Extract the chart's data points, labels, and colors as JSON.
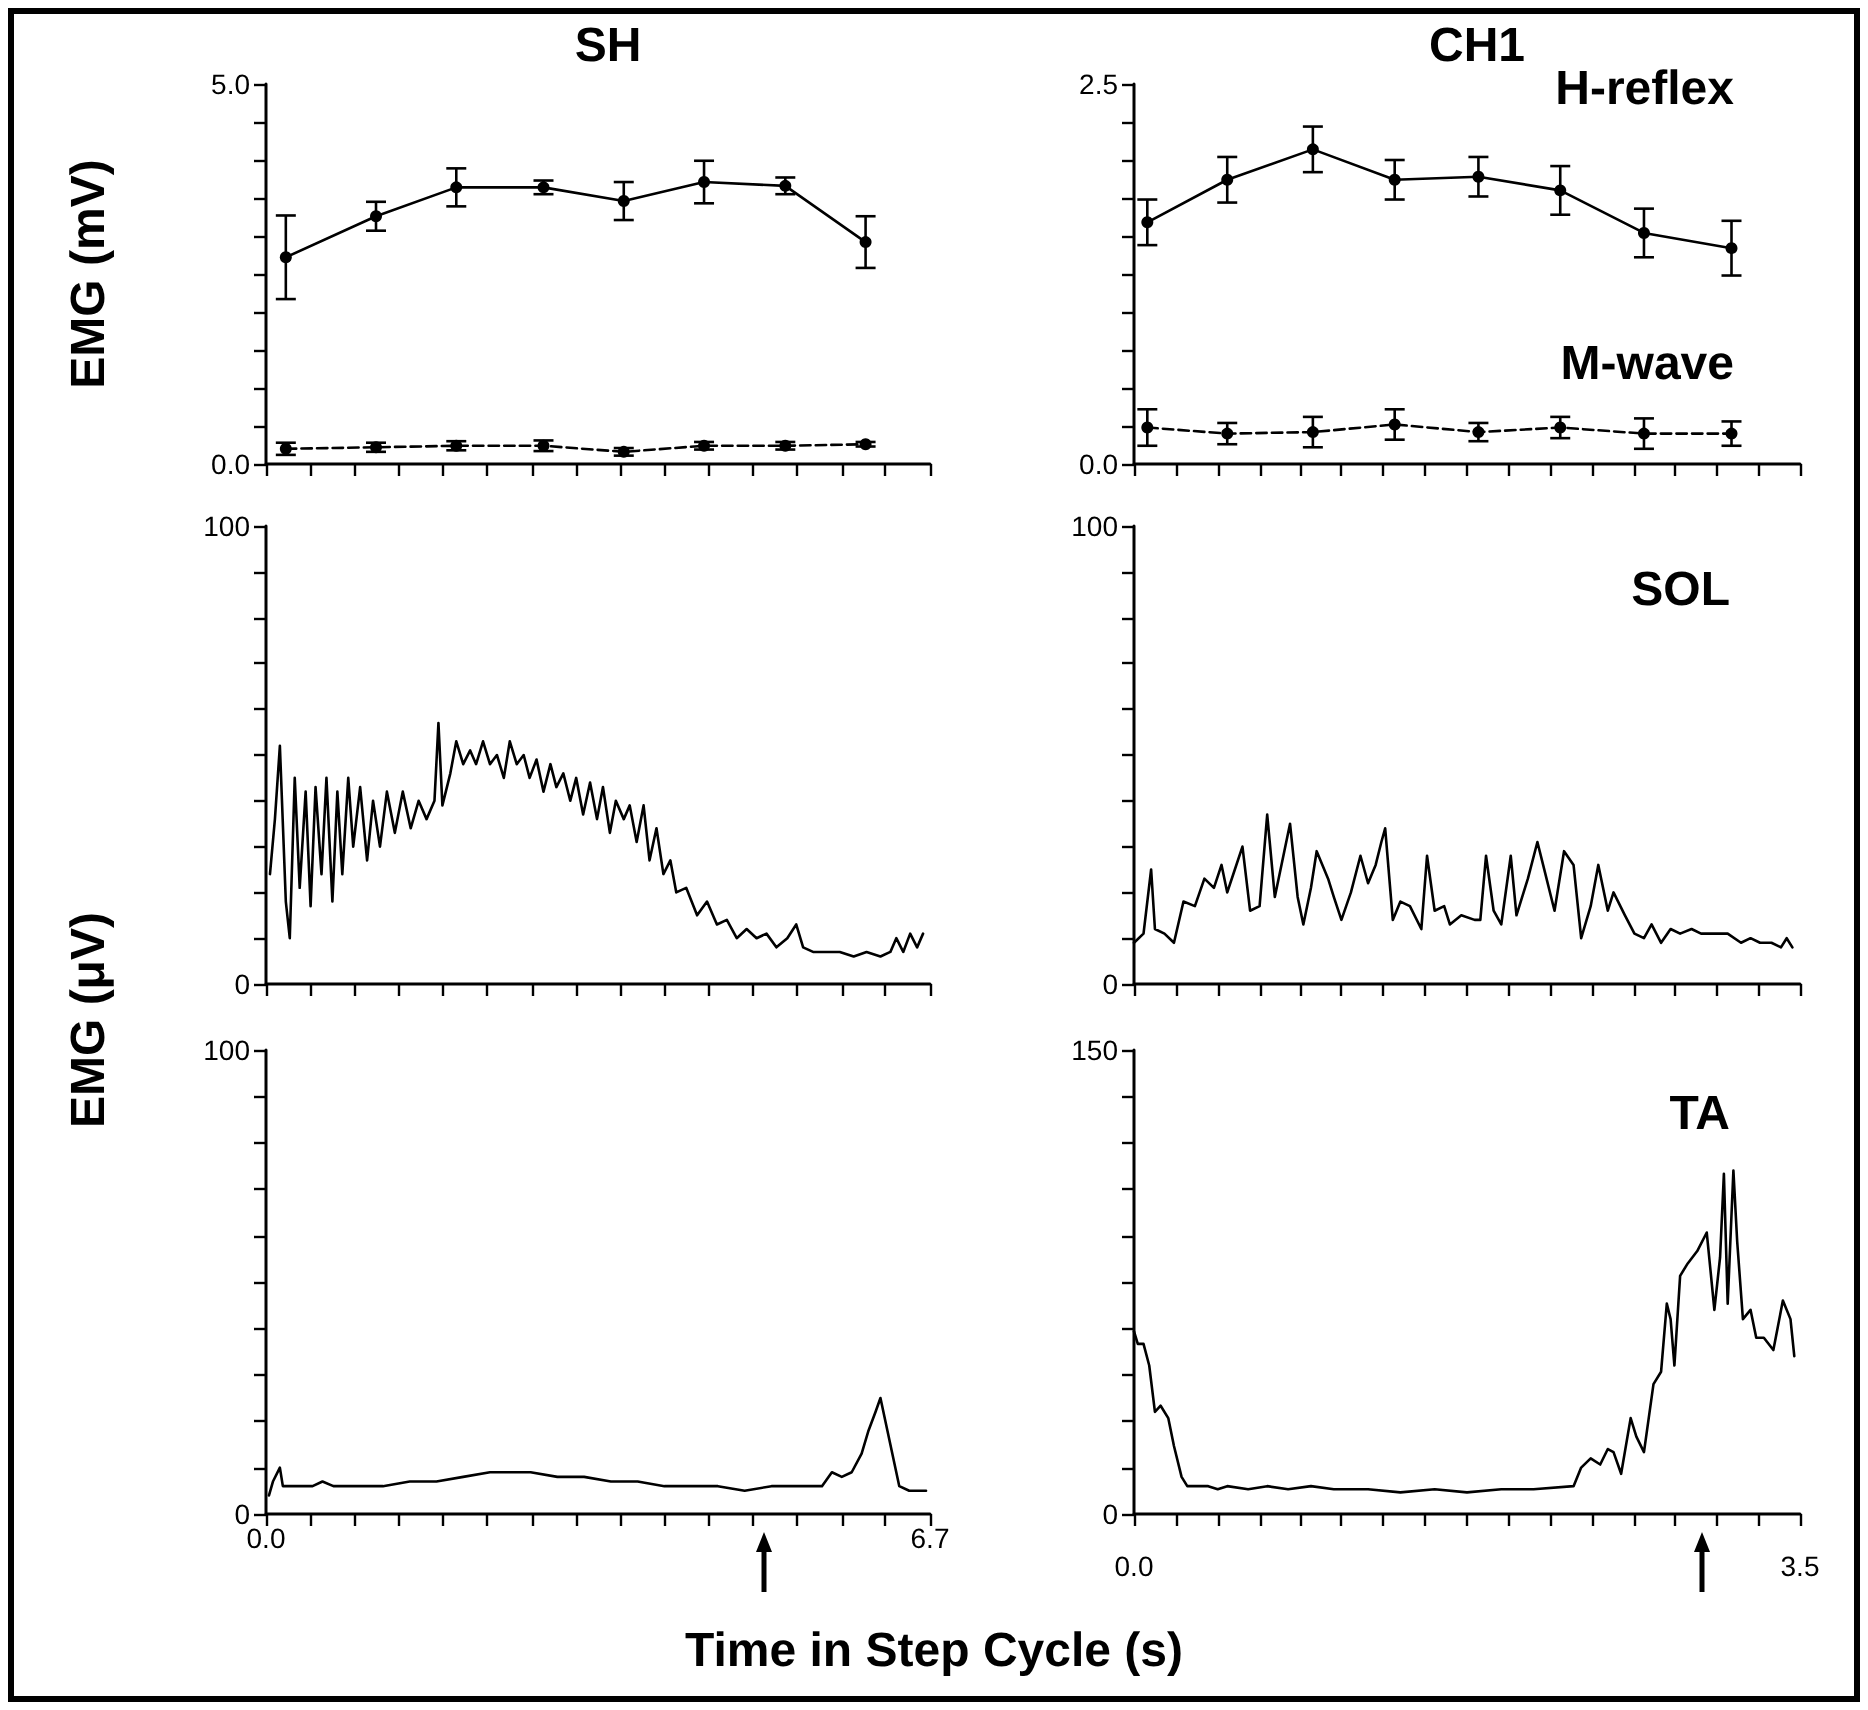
{
  "chart_data": [
    {
      "type": "line",
      "title": "SH",
      "ylabel": "EMG (mV)",
      "marker": "circle",
      "tick_labels": "y",
      "xlim": [
        0,
        6.7
      ],
      "ylim": [
        0,
        5
      ],
      "xticks": [
        {
          "value": 0,
          "label": null
        },
        {
          "value": 0.45,
          "label": null
        },
        {
          "value": 0.89,
          "label": null
        },
        {
          "value": 1.34,
          "label": null
        },
        {
          "value": 1.79,
          "label": null
        },
        {
          "value": 2.23,
          "label": null
        },
        {
          "value": 2.68,
          "label": null
        },
        {
          "value": 3.13,
          "label": null
        },
        {
          "value": 3.57,
          "label": null
        },
        {
          "value": 4.02,
          "label": null
        },
        {
          "value": 4.47,
          "label": null
        },
        {
          "value": 4.91,
          "label": null
        },
        {
          "value": 5.36,
          "label": null
        },
        {
          "value": 5.81,
          "label": null
        },
        {
          "value": 6.25,
          "label": null
        },
        {
          "value": 6.7,
          "label": null
        }
      ],
      "yticks": [
        {
          "value": 0,
          "label": "0.0"
        },
        {
          "value": 0.5,
          "label": null
        },
        {
          "value": 1,
          "label": null
        },
        {
          "value": 1.5,
          "label": null
        },
        {
          "value": 2,
          "label": null
        },
        {
          "value": 2.5,
          "label": null
        },
        {
          "value": 3,
          "label": null
        },
        {
          "value": 3.5,
          "label": null
        },
        {
          "value": 4,
          "label": null
        },
        {
          "value": 4.5,
          "label": null
        },
        {
          "value": 5,
          "label": "5.0"
        }
      ],
      "x": [
        0.2,
        1.11,
        1.92,
        2.8,
        3.61,
        4.42,
        5.24,
        6.05
      ],
      "series": [
        {
          "color": "#000000",
          "line_style": "solid",
          "values": [
            2.72,
            3.26,
            3.64,
            3.64,
            3.46,
            3.71,
            3.66,
            2.92
          ],
          "errors": [
            0.55,
            0.19,
            0.25,
            0.09,
            0.25,
            0.28,
            0.11,
            0.34
          ]
        },
        {
          "color": "#000000",
          "line_style": "dashed",
          "values": [
            0.2,
            0.22,
            0.24,
            0.24,
            0.16,
            0.24,
            0.24,
            0.26
          ],
          "errors": [
            0.08,
            0.06,
            0.06,
            0.07,
            0.05,
            0.05,
            0.05,
            0.03
          ]
        }
      ]
    },
    {
      "type": "line",
      "title": "CH1",
      "marker": "circle",
      "tick_labels": "y",
      "xlim": [
        0,
        3.5
      ],
      "ylim": [
        0,
        2.5
      ],
      "xticks": [
        {
          "value": 0,
          "label": null
        },
        {
          "value": 0.22,
          "label": null
        },
        {
          "value": 0.44,
          "label": null
        },
        {
          "value": 0.66,
          "label": null
        },
        {
          "value": 0.88,
          "label": null
        },
        {
          "value": 1.09,
          "label": null
        },
        {
          "value": 1.31,
          "label": null
        },
        {
          "value": 1.53,
          "label": null
        },
        {
          "value": 1.75,
          "label": null
        },
        {
          "value": 1.97,
          "label": null
        },
        {
          "value": 2.19,
          "label": null
        },
        {
          "value": 2.41,
          "label": null
        },
        {
          "value": 2.63,
          "label": null
        },
        {
          "value": 2.84,
          "label": null
        },
        {
          "value": 3.06,
          "label": null
        },
        {
          "value": 3.28,
          "label": null
        },
        {
          "value": 3.5,
          "label": null
        }
      ],
      "yticks": [
        {
          "value": 0,
          "label": "0.0"
        },
        {
          "value": 0.25,
          "label": null
        },
        {
          "value": 0.5,
          "label": null
        },
        {
          "value": 0.75,
          "label": null
        },
        {
          "value": 1,
          "label": null
        },
        {
          "value": 1.25,
          "label": null
        },
        {
          "value": 1.5,
          "label": null
        },
        {
          "value": 1.75,
          "label": null
        },
        {
          "value": 2,
          "label": null
        },
        {
          "value": 2.25,
          "label": null
        },
        {
          "value": 2.5,
          "label": "2.5"
        }
      ],
      "x": [
        0.07,
        0.49,
        0.94,
        1.37,
        1.81,
        2.24,
        2.68,
        3.14
      ],
      "series": [
        {
          "name": "H-reflex",
          "color": "#000000",
          "line_style": "solid",
          "values": [
            1.59,
            1.87,
            2.07,
            1.87,
            1.89,
            1.8,
            1.52,
            1.42
          ],
          "errors": [
            0.15,
            0.15,
            0.15,
            0.13,
            0.13,
            0.16,
            0.16,
            0.18
          ]
        },
        {
          "name": "M-wave",
          "color": "#000000",
          "line_style": "dashed",
          "values": [
            0.24,
            0.2,
            0.21,
            0.26,
            0.21,
            0.24,
            0.2,
            0.2
          ],
          "errors": [
            0.12,
            0.07,
            0.1,
            0.1,
            0.06,
            0.07,
            0.1,
            0.08
          ]
        }
      ]
    },
    {
      "type": "line",
      "ylabel": "EMG (μV)",
      "marker": "none",
      "tick_labels": "y",
      "xlim": [
        0,
        6.7
      ],
      "ylim": [
        0,
        100
      ],
      "xticks": [
        {
          "value": 0,
          "label": null
        },
        {
          "value": 0.45,
          "label": null
        },
        {
          "value": 0.89,
          "label": null
        },
        {
          "value": 1.34,
          "label": null
        },
        {
          "value": 1.79,
          "label": null
        },
        {
          "value": 2.23,
          "label": null
        },
        {
          "value": 2.68,
          "label": null
        },
        {
          "value": 3.13,
          "label": null
        },
        {
          "value": 3.57,
          "label": null
        },
        {
          "value": 4.02,
          "label": null
        },
        {
          "value": 4.47,
          "label": null
        },
        {
          "value": 4.91,
          "label": null
        },
        {
          "value": 5.36,
          "label": null
        },
        {
          "value": 5.81,
          "label": null
        },
        {
          "value": 6.25,
          "label": null
        },
        {
          "value": 6.7,
          "label": null
        }
      ],
      "yticks": [
        0,
        {
          "value": 10,
          "label": null
        },
        {
          "value": 20,
          "label": null
        },
        {
          "value": 30,
          "label": null
        },
        {
          "value": 40,
          "label": null
        },
        {
          "value": 50,
          "label": null
        },
        {
          "value": 60,
          "label": null
        },
        {
          "value": 70,
          "label": null
        },
        {
          "value": 80,
          "label": null
        },
        {
          "value": 90,
          "label": null
        },
        100
      ],
      "x": [
        0.04,
        0.09,
        0.14,
        0.2,
        0.24,
        0.29,
        0.34,
        0.4,
        0.45,
        0.5,
        0.56,
        0.61,
        0.67,
        0.72,
        0.77,
        0.83,
        0.88,
        0.95,
        1.02,
        1.08,
        1.15,
        1.22,
        1.3,
        1.38,
        1.46,
        1.54,
        1.62,
        1.7,
        1.74,
        1.78,
        1.86,
        1.92,
        1.99,
        2.06,
        2.12,
        2.19,
        2.26,
        2.33,
        2.4,
        2.46,
        2.53,
        2.6,
        2.66,
        2.73,
        2.8,
        2.87,
        2.93,
        3.0,
        3.07,
        3.13,
        3.2,
        3.27,
        3.34,
        3.4,
        3.47,
        3.53,
        3.61,
        3.67,
        3.74,
        3.81,
        3.87,
        3.94,
        4.01,
        4.08,
        4.14,
        4.24,
        4.35,
        4.45,
        4.55,
        4.65,
        4.75,
        4.85,
        4.95,
        5.05,
        5.15,
        5.26,
        5.35,
        5.42,
        5.52,
        5.66,
        5.79,
        5.93,
        6.06,
        6.2,
        6.3,
        6.36,
        6.43,
        6.5,
        6.57,
        6.63
      ],
      "series": [
        {
          "color": "#000000",
          "values": [
            24,
            36,
            52,
            18,
            10,
            45,
            21,
            42,
            17,
            43,
            24,
            45,
            18,
            42,
            24,
            45,
            30,
            43,
            27,
            40,
            30,
            42,
            33,
            42,
            34,
            40,
            36,
            40,
            57,
            39,
            46,
            53,
            48,
            51,
            48,
            53,
            48,
            50,
            45,
            53,
            48,
            50,
            45,
            49,
            42,
            48,
            43,
            46,
            40,
            45,
            37,
            44,
            36,
            43,
            33,
            40,
            36,
            39,
            31,
            39,
            27,
            34,
            24,
            27,
            20,
            21,
            15,
            18,
            13,
            14,
            10,
            12,
            10,
            11,
            8,
            10,
            13,
            8,
            7,
            7,
            7,
            6,
            7,
            6,
            7,
            10,
            7,
            11,
            8,
            11
          ]
        }
      ]
    },
    {
      "type": "line",
      "annotations": [
        "SOL"
      ],
      "marker": "none",
      "tick_labels": "y",
      "xlim": [
        0,
        3.5
      ],
      "ylim": [
        0,
        100
      ],
      "xticks": [
        {
          "value": 0,
          "label": null
        },
        {
          "value": 0.22,
          "label": null
        },
        {
          "value": 0.44,
          "label": null
        },
        {
          "value": 0.66,
          "label": null
        },
        {
          "value": 0.88,
          "label": null
        },
        {
          "value": 1.09,
          "label": null
        },
        {
          "value": 1.31,
          "label": null
        },
        {
          "value": 1.53,
          "label": null
        },
        {
          "value": 1.75,
          "label": null
        },
        {
          "value": 1.97,
          "label": null
        },
        {
          "value": 2.19,
          "label": null
        },
        {
          "value": 2.41,
          "label": null
        },
        {
          "value": 2.63,
          "label": null
        },
        {
          "value": 2.84,
          "label": null
        },
        {
          "value": 3.06,
          "label": null
        },
        {
          "value": 3.28,
          "label": null
        },
        {
          "value": 3.5,
          "label": null
        }
      ],
      "yticks": [
        0,
        {
          "value": 10,
          "label": null
        },
        {
          "value": 20,
          "label": null
        },
        {
          "value": 30,
          "label": null
        },
        {
          "value": 40,
          "label": null
        },
        {
          "value": 50,
          "label": null
        },
        {
          "value": 60,
          "label": null
        },
        {
          "value": 70,
          "label": null
        },
        {
          "value": 80,
          "label": null
        },
        {
          "value": 90,
          "label": null
        },
        100
      ],
      "x": [
        0,
        0.05,
        0.09,
        0.11,
        0.16,
        0.21,
        0.26,
        0.32,
        0.37,
        0.42,
        0.46,
        0.49,
        0.53,
        0.57,
        0.61,
        0.66,
        0.7,
        0.74,
        0.79,
        0.82,
        0.86,
        0.89,
        0.93,
        0.96,
        1.02,
        1.05,
        1.09,
        1.14,
        1.19,
        1.23,
        1.27,
        1.3,
        1.32,
        1.36,
        1.4,
        1.45,
        1.51,
        1.54,
        1.58,
        1.63,
        1.66,
        1.72,
        1.79,
        1.82,
        1.85,
        1.89,
        1.93,
        1.98,
        2.01,
        2.07,
        2.12,
        2.15,
        2.21,
        2.26,
        2.31,
        2.35,
        2.4,
        2.44,
        2.49,
        2.52,
        2.58,
        2.63,
        2.68,
        2.72,
        2.77,
        2.82,
        2.87,
        2.93,
        2.98,
        3.05,
        3.12,
        3.19,
        3.24,
        3.29,
        3.35,
        3.4,
        3.43,
        3.46
      ],
      "series": [
        {
          "color": "#000000",
          "values": [
            9,
            11,
            25,
            12,
            11,
            9,
            18,
            17,
            23,
            21,
            26,
            20,
            25,
            30,
            16,
            17,
            37,
            19,
            29,
            35,
            19,
            13,
            21,
            29,
            23,
            19,
            14,
            20,
            28,
            22,
            26,
            31,
            34,
            14,
            18,
            17,
            12,
            28,
            16,
            17,
            13,
            15,
            14,
            14,
            28,
            16,
            13,
            28,
            15,
            23,
            31,
            26,
            16,
            29,
            26,
            10,
            17,
            26,
            16,
            20,
            15,
            11,
            10,
            13,
            9,
            12,
            11,
            12,
            11,
            11,
            11,
            9,
            10,
            9,
            9,
            8,
            10,
            8
          ]
        }
      ]
    },
    {
      "type": "line",
      "xlabel": "Time in Step Cycle (s)",
      "marker": "none",
      "xlim": [
        0,
        6.7
      ],
      "ylim": [
        0,
        100
      ],
      "xticks": [
        {
          "value": 0,
          "label": "0.0"
        },
        {
          "value": 0.45,
          "label": null
        },
        {
          "value": 0.89,
          "label": null
        },
        {
          "value": 1.34,
          "label": null
        },
        {
          "value": 1.79,
          "label": null
        },
        {
          "value": 2.23,
          "label": null
        },
        {
          "value": 2.68,
          "label": null
        },
        {
          "value": 3.13,
          "label": null
        },
        {
          "value": 3.57,
          "label": null
        },
        {
          "value": 4.02,
          "label": null
        },
        {
          "value": 4.47,
          "label": null
        },
        {
          "value": 4.91,
          "label": null
        },
        {
          "value": 5.36,
          "label": null
        },
        {
          "value": 5.81,
          "label": null
        },
        {
          "value": 6.25,
          "label": null
        },
        {
          "value": 6.7,
          "label": "6.7"
        }
      ],
      "yticks": [
        0,
        {
          "value": 10,
          "label": null
        },
        {
          "value": 20,
          "label": null
        },
        {
          "value": 30,
          "label": null
        },
        {
          "value": 40,
          "label": null
        },
        {
          "value": 50,
          "label": null
        },
        {
          "value": 60,
          "label": null
        },
        {
          "value": 70,
          "label": null
        },
        {
          "value": 80,
          "label": null
        },
        {
          "value": 90,
          "label": null
        },
        100
      ],
      "x": [
        0.03,
        0.07,
        0.14,
        0.17,
        0.27,
        0.37,
        0.47,
        0.57,
        0.68,
        0.91,
        1.18,
        1.45,
        1.72,
        1.99,
        2.26,
        2.4,
        2.67,
        2.94,
        3.21,
        3.48,
        3.75,
        4.02,
        4.29,
        4.56,
        4.83,
        5.1,
        5.37,
        5.61,
        5.71,
        5.81,
        5.91,
        6.01,
        6.08,
        6.15,
        6.2,
        6.25,
        6.32,
        6.39,
        6.49,
        6.66
      ],
      "series": [
        {
          "color": "#000000",
          "values": [
            4,
            7,
            10,
            6,
            6,
            6,
            6,
            7,
            6,
            6,
            6,
            7,
            7,
            8,
            9,
            9,
            9,
            8,
            8,
            7,
            7,
            6,
            6,
            6,
            5,
            6,
            6,
            6,
            9,
            8,
            9,
            13,
            18,
            22,
            25,
            20,
            13,
            6,
            5,
            5
          ]
        }
      ]
    },
    {
      "type": "line",
      "annotations": [
        "TA"
      ],
      "marker": "none",
      "xlim": [
        0,
        3.5
      ],
      "ylim": [
        0,
        150
      ],
      "xticks": [
        {
          "value": 0,
          "label": "0.0"
        },
        {
          "value": 0.22,
          "label": null
        },
        {
          "value": 0.44,
          "label": null
        },
        {
          "value": 0.66,
          "label": null
        },
        {
          "value": 0.88,
          "label": null
        },
        {
          "value": 1.09,
          "label": null
        },
        {
          "value": 1.31,
          "label": null
        },
        {
          "value": 1.53,
          "label": null
        },
        {
          "value": 1.75,
          "label": null
        },
        {
          "value": 1.97,
          "label": null
        },
        {
          "value": 2.19,
          "label": null
        },
        {
          "value": 2.41,
          "label": null
        },
        {
          "value": 2.63,
          "label": null
        },
        {
          "value": 2.84,
          "label": null
        },
        {
          "value": 3.06,
          "label": null
        },
        {
          "value": 3.28,
          "label": null
        },
        {
          "value": 3.5,
          "label": "3.5"
        }
      ],
      "yticks": [
        0,
        {
          "value": 15,
          "label": null
        },
        {
          "value": 30,
          "label": null
        },
        {
          "value": 45,
          "label": null
        },
        {
          "value": 60,
          "label": null
        },
        {
          "value": 75,
          "label": null
        },
        {
          "value": 90,
          "label": null
        },
        {
          "value": 105,
          "label": null
        },
        {
          "value": 120,
          "label": null
        },
        {
          "value": 135,
          "label": null
        },
        150
      ],
      "x": [
        0,
        0.02,
        0.05,
        0.08,
        0.11,
        0.14,
        0.18,
        0.21,
        0.25,
        0.28,
        0.33,
        0.39,
        0.44,
        0.49,
        0.6,
        0.7,
        0.81,
        0.93,
        1.05,
        1.23,
        1.4,
        1.58,
        1.75,
        1.93,
        2.1,
        2.31,
        2.35,
        2.4,
        2.45,
        2.49,
        2.52,
        2.56,
        2.61,
        2.64,
        2.68,
        2.73,
        2.77,
        2.8,
        2.82,
        2.84,
        2.87,
        2.91,
        2.96,
        3.01,
        3.05,
        3.08,
        3.1,
        3.12,
        3.15,
        3.17,
        3.2,
        3.24,
        3.27,
        3.31,
        3.36,
        3.41,
        3.45,
        3.47
      ],
      "series": [
        {
          "color": "#000000",
          "values": [
            59,
            55,
            55,
            48,
            33,
            35,
            31,
            22,
            12,
            9,
            9,
            9,
            8,
            9,
            8,
            9,
            8,
            9,
            8,
            8,
            7,
            8,
            7,
            8,
            8,
            9,
            15,
            18,
            16,
            21,
            20,
            13,
            31,
            25,
            20,
            42,
            46,
            68,
            63,
            48,
            77,
            81,
            85,
            91,
            66,
            83,
            110,
            68,
            111,
            88,
            63,
            66,
            57,
            57,
            53,
            69,
            63,
            51
          ]
        }
      ]
    }
  ]
}
